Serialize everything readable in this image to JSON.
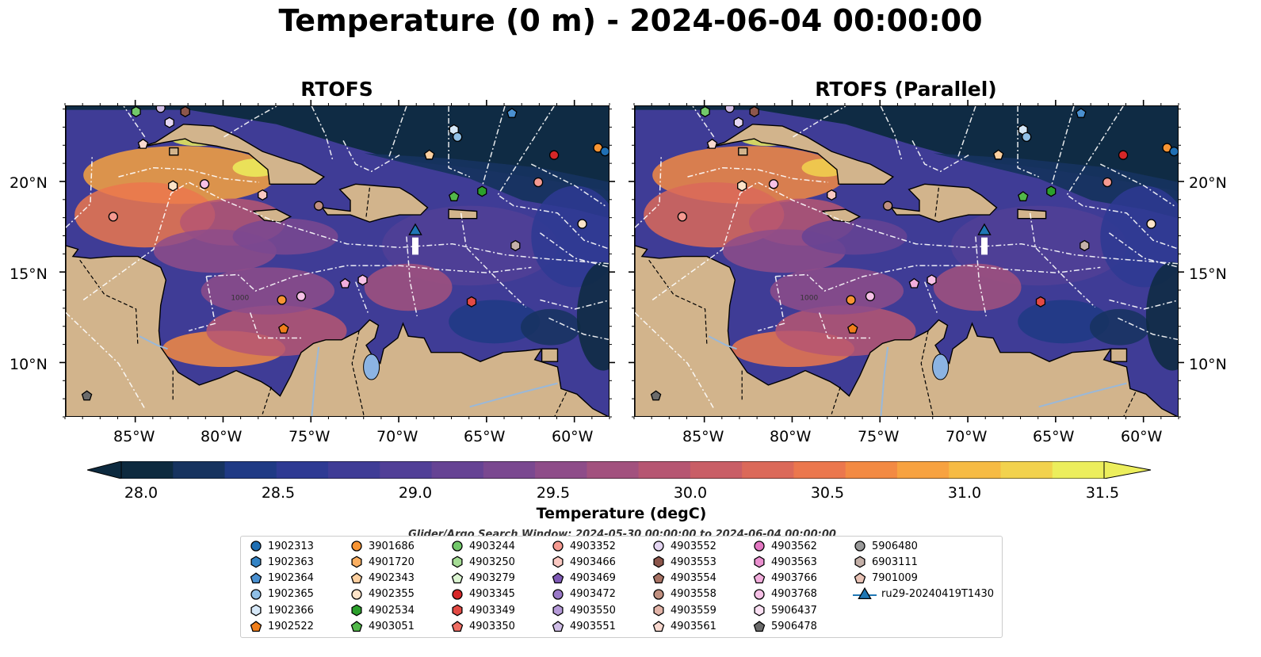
{
  "title": "Temperature (0 m) - 2024-06-04 00:00:00",
  "panels": [
    {
      "title": "RTOFS"
    },
    {
      "title": "RTOFS (Parallel)"
    }
  ],
  "map": {
    "lon_range": [
      -89,
      -58
    ],
    "lat_range": [
      7,
      24.2
    ],
    "lon_ticks": [
      "85°W",
      "80°W",
      "75°W",
      "70°W",
      "65°W",
      "60°W"
    ],
    "lat_ticks": [
      "20°N",
      "15°N",
      "10°N"
    ],
    "land_color": "#d2b48c",
    "contour_label": "1000"
  },
  "colorbar": {
    "label": "Temperature (degC)",
    "ticks": [
      "28.0",
      "28.5",
      "29.0",
      "29.5",
      "30.0",
      "30.5",
      "31.0",
      "31.5"
    ],
    "range": [
      28.0,
      31.5
    ],
    "colors": [
      "#0d2a3f",
      "#16335f",
      "#1f3a85",
      "#2e3a93",
      "#3f3c96",
      "#513f97",
      "#664394",
      "#7a4890",
      "#8e4c89",
      "#a2517e",
      "#b65672",
      "#c95e66",
      "#db6959",
      "#eb774d",
      "#f38a43",
      "#f7a240",
      "#f6bb44",
      "#f2d24d",
      "#ecee5c"
    ]
  },
  "search_window": "Glider/Argo Search Window: 2024-05-30 00:00:00 to 2024-06-04 00:00:00",
  "legend": [
    {
      "id": "1902313",
      "color": "#1f6fb4",
      "marker": "circle"
    },
    {
      "id": "1902363",
      "color": "#3584c5",
      "marker": "hexagon"
    },
    {
      "id": "1902364",
      "color": "#4a90d0",
      "marker": "pentagon"
    },
    {
      "id": "1902365",
      "color": "#8fbfe6",
      "marker": "circle"
    },
    {
      "id": "1902366",
      "color": "#d6e8f8",
      "marker": "hexagon"
    },
    {
      "id": "1902522",
      "color": "#f07e1a",
      "marker": "pentagon"
    },
    {
      "id": "3901686",
      "color": "#f79433",
      "marker": "circle"
    },
    {
      "id": "4901720",
      "color": "#fbaf61",
      "marker": "hexagon"
    },
    {
      "id": "4902343",
      "color": "#fdd0a0",
      "marker": "pentagon"
    },
    {
      "id": "4902355",
      "color": "#fde3c8",
      "marker": "circle"
    },
    {
      "id": "4902534",
      "color": "#2ca02c",
      "marker": "hexagon"
    },
    {
      "id": "4903051",
      "color": "#52b84a",
      "marker": "pentagon"
    },
    {
      "id": "4903244",
      "color": "#72c86a",
      "marker": "circle"
    },
    {
      "id": "4903250",
      "color": "#a5dc95",
      "marker": "hexagon"
    },
    {
      "id": "4903279",
      "color": "#dcf5d2",
      "marker": "pentagon"
    },
    {
      "id": "4903345",
      "color": "#d62728",
      "marker": "circle"
    },
    {
      "id": "4903349",
      "color": "#e34a44",
      "marker": "hexagon"
    },
    {
      "id": "4903350",
      "color": "#ef6e64",
      "marker": "pentagon"
    },
    {
      "id": "4903352",
      "color": "#f59a91",
      "marker": "circle"
    },
    {
      "id": "4903466",
      "color": "#fbc9c2",
      "marker": "hexagon"
    },
    {
      "id": "4903469",
      "color": "#7f5ab6",
      "marker": "pentagon"
    },
    {
      "id": "4903472",
      "color": "#9a79c8",
      "marker": "circle"
    },
    {
      "id": "4903550",
      "color": "#b59ad8",
      "marker": "hexagon"
    },
    {
      "id": "4903551",
      "color": "#cfbde6",
      "marker": "pentagon"
    },
    {
      "id": "4903552",
      "color": "#e4d6f2",
      "marker": "circle"
    },
    {
      "id": "4903553",
      "color": "#8c564b",
      "marker": "hexagon"
    },
    {
      "id": "4903554",
      "color": "#a77264",
      "marker": "pentagon"
    },
    {
      "id": "4903558",
      "color": "#c09080",
      "marker": "circle"
    },
    {
      "id": "4903559",
      "color": "#e2b4a8",
      "marker": "hexagon"
    },
    {
      "id": "4903561",
      "color": "#f8d8cf",
      "marker": "pentagon"
    },
    {
      "id": "4903562",
      "color": "#e377c2",
      "marker": "circle"
    },
    {
      "id": "4903563",
      "color": "#ea90cf",
      "marker": "hexagon"
    },
    {
      "id": "4903766",
      "color": "#f2addc",
      "marker": "pentagon"
    },
    {
      "id": "4903768",
      "color": "#f6c1e6",
      "marker": "circle"
    },
    {
      "id": "5906437",
      "color": "#fbe0f3",
      "marker": "hexagon"
    },
    {
      "id": "5906478",
      "color": "#6b6b6b",
      "marker": "pentagon"
    },
    {
      "id": "5906480",
      "color": "#9a9a9a",
      "marker": "circle"
    },
    {
      "id": "6903111",
      "color": "#c4b0a8",
      "marker": "hexagon"
    },
    {
      "id": "7901009",
      "color": "#e9c3b6",
      "marker": "pentagon"
    },
    {
      "id": "ru29-20240419T1430",
      "color": "#1f77b4",
      "marker": "triangle"
    }
  ],
  "floats": [
    {
      "lon": -85.0,
      "lat": 23.9,
      "color": "#72c86a",
      "marker": "hexagon"
    },
    {
      "lon": -83.6,
      "lat": 24.1,
      "color": "#cfbde6",
      "marker": "circle"
    },
    {
      "lon": -82.2,
      "lat": 23.9,
      "color": "#8c564b",
      "marker": "hexagon"
    },
    {
      "lon": -84.6,
      "lat": 22.1,
      "color": "#f8d8cf",
      "marker": "pentagon"
    },
    {
      "lon": -83.1,
      "lat": 23.3,
      "color": "#e4d6f2",
      "marker": "hexagon"
    },
    {
      "lon": -82.9,
      "lat": 19.8,
      "color": "#fde3c8",
      "marker": "hexagon"
    },
    {
      "lon": -81.1,
      "lat": 19.9,
      "color": "#f6c1e6",
      "marker": "circle"
    },
    {
      "lon": -86.3,
      "lat": 18.1,
      "color": "#f59a91",
      "marker": "circle"
    },
    {
      "lon": -77.8,
      "lat": 19.3,
      "color": "#fbc9c2",
      "marker": "hexagon"
    },
    {
      "lon": -74.6,
      "lat": 18.7,
      "color": "#c09080",
      "marker": "circle"
    },
    {
      "lon": -68.3,
      "lat": 21.5,
      "color": "#fdd0a0",
      "marker": "pentagon"
    },
    {
      "lon": -66.9,
      "lat": 22.9,
      "color": "#d6e8f8",
      "marker": "hexagon"
    },
    {
      "lon": -66.7,
      "lat": 22.5,
      "color": "#8fbfe6",
      "marker": "circle"
    },
    {
      "lon": -63.6,
      "lat": 23.8,
      "color": "#4a90d0",
      "marker": "pentagon"
    },
    {
      "lon": -61.2,
      "lat": 21.5,
      "color": "#d62728",
      "marker": "circle"
    },
    {
      "lon": -58.7,
      "lat": 21.9,
      "color": "#f79433",
      "marker": "circle"
    },
    {
      "lon": -58.3,
      "lat": 21.7,
      "color": "#1f6fb4",
      "marker": "circle"
    },
    {
      "lon": -62.1,
      "lat": 20.0,
      "color": "#f59a91",
      "marker": "circle"
    },
    {
      "lon": -66.9,
      "lat": 19.2,
      "color": "#52b84a",
      "marker": "pentagon"
    },
    {
      "lon": -65.3,
      "lat": 19.5,
      "color": "#2ca02c",
      "marker": "hexagon"
    },
    {
      "lon": -59.6,
      "lat": 17.7,
      "color": "#fde3c8",
      "marker": "circle"
    },
    {
      "lon": -63.4,
      "lat": 16.5,
      "color": "#c4b0a8",
      "marker": "hexagon"
    },
    {
      "lon": -73.1,
      "lat": 14.4,
      "color": "#f2addc",
      "marker": "pentagon"
    },
    {
      "lon": -72.1,
      "lat": 14.6,
      "color": "#f6c1e6",
      "marker": "hexagon"
    },
    {
      "lon": -76.7,
      "lat": 13.5,
      "color": "#f79433",
      "marker": "circle"
    },
    {
      "lon": -75.6,
      "lat": 13.7,
      "color": "#f6c1e6",
      "marker": "circle"
    },
    {
      "lon": -65.9,
      "lat": 13.4,
      "color": "#e34a44",
      "marker": "hexagon"
    },
    {
      "lon": -76.6,
      "lat": 11.9,
      "color": "#f07e1a",
      "marker": "pentagon"
    },
    {
      "lon": -87.8,
      "lat": 8.2,
      "color": "#6b6b6b",
      "marker": "pentagon"
    }
  ],
  "glider": {
    "lon": -69.1,
    "lat": 17.3,
    "track_end_lat": 16.0,
    "color": "#1f77b4"
  }
}
